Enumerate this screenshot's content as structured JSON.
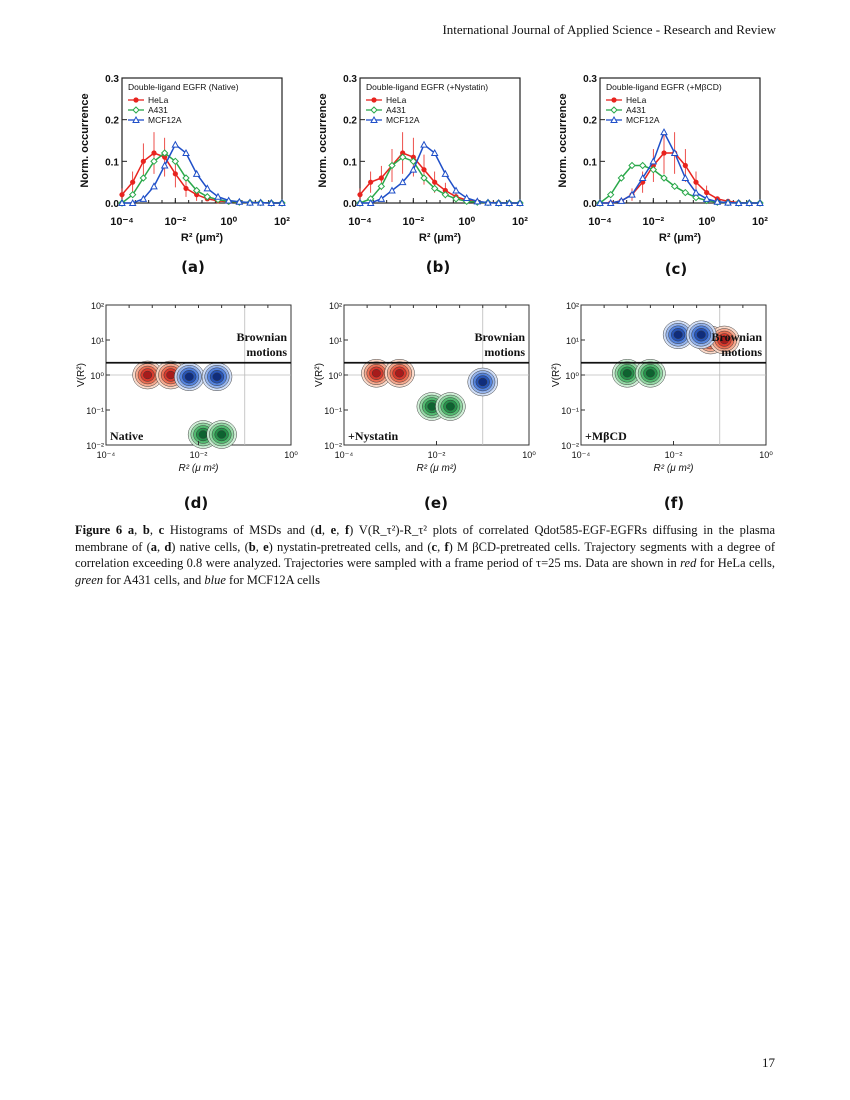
{
  "header": "International Journal of Applied Science - Research and Review",
  "page_number": "17",
  "colors": {
    "hela": "#e8231e",
    "a431": "#2aa84a",
    "mcf12a": "#1f4fc8"
  },
  "panel_labels": [
    "(a)",
    "(b)",
    "(c)",
    "(d)",
    "(e)",
    "(f)"
  ],
  "chart_data": [
    {
      "type": "line",
      "panel": "a",
      "title": "Double-ligand EGFR (Native)",
      "xlabel": "R² (μm²)",
      "ylabel": "Norm. occurrence",
      "x_scale": "log",
      "x_ticks": [
        "10⁻⁴",
        "10⁻²",
        "10⁰",
        "10²"
      ],
      "y_ticks": [
        "0.0",
        "0.1",
        "0.2",
        "0.3"
      ],
      "ylim": [
        0,
        0.3
      ],
      "x_exponents": [
        -4,
        -3.6,
        -3.2,
        -2.8,
        -2.4,
        -2,
        -1.6,
        -1.2,
        -0.8,
        -0.4,
        0,
        0.4,
        0.8,
        1.2,
        1.6,
        2
      ],
      "series": [
        {
          "name": "HeLa",
          "color": "#e8231e",
          "values": [
            0.02,
            0.05,
            0.1,
            0.12,
            0.11,
            0.07,
            0.035,
            0.02,
            0.01,
            0.005,
            0.003,
            0.002,
            0.001,
            0.001,
            0,
            0
          ]
        },
        {
          "name": "A431",
          "color": "#2aa84a",
          "values": [
            0.0,
            0.02,
            0.06,
            0.1,
            0.12,
            0.1,
            0.06,
            0.03,
            0.015,
            0.008,
            0.004,
            0.002,
            0.001,
            0.001,
            0,
            0
          ]
        },
        {
          "name": "MCF12A",
          "color": "#1f4fc8",
          "values": [
            0.0,
            0.0,
            0.01,
            0.04,
            0.09,
            0.14,
            0.12,
            0.07,
            0.035,
            0.015,
            0.006,
            0.003,
            0.001,
            0.001,
            0,
            0
          ]
        }
      ]
    },
    {
      "type": "line",
      "panel": "b",
      "title": "Double-ligand EGFR (+Nystatin)",
      "xlabel": "R² (μm²)",
      "ylabel": "Norm. occurrence",
      "x_scale": "log",
      "x_ticks": [
        "10⁻⁴",
        "10⁻²",
        "10⁰",
        "10²"
      ],
      "y_ticks": [
        "0.0",
        "0.1",
        "0.2",
        "0.3"
      ],
      "ylim": [
        0,
        0.3
      ],
      "x_exponents": [
        -4,
        -3.6,
        -3.2,
        -2.8,
        -2.4,
        -2,
        -1.6,
        -1.2,
        -0.8,
        -0.4,
        0,
        0.4,
        0.8,
        1.2,
        1.6,
        2
      ],
      "series": [
        {
          "name": "HeLa",
          "color": "#e8231e",
          "values": [
            0.02,
            0.05,
            0.06,
            0.09,
            0.12,
            0.11,
            0.08,
            0.05,
            0.03,
            0.015,
            0.007,
            0.003,
            0.001,
            0.001,
            0,
            0
          ]
        },
        {
          "name": "A431",
          "color": "#2aa84a",
          "values": [
            0.0,
            0.01,
            0.04,
            0.09,
            0.11,
            0.1,
            0.06,
            0.035,
            0.02,
            0.01,
            0.004,
            0.002,
            0.001,
            0,
            0,
            0
          ]
        },
        {
          "name": "MCF12A",
          "color": "#1f4fc8",
          "values": [
            0.0,
            0.0,
            0.01,
            0.03,
            0.05,
            0.08,
            0.14,
            0.12,
            0.07,
            0.03,
            0.012,
            0.004,
            0.001,
            0,
            0,
            0
          ]
        }
      ]
    },
    {
      "type": "line",
      "panel": "c",
      "title": "Double-ligand EGFR (+MβCD)",
      "xlabel": "R² (μm²)",
      "ylabel": "Norm. occurrence",
      "x_scale": "log",
      "x_ticks": [
        "10⁻⁴",
        "10⁻²",
        "10⁰",
        "10²"
      ],
      "y_ticks": [
        "0.0",
        "0.1",
        "0.2",
        "0.3"
      ],
      "ylim": [
        0,
        0.3
      ],
      "x_exponents": [
        -4,
        -3.6,
        -3.2,
        -2.8,
        -2.4,
        -2,
        -1.6,
        -1.2,
        -0.8,
        -0.4,
        0,
        0.4,
        0.8,
        1.2,
        1.6,
        2
      ],
      "series": [
        {
          "name": "HeLa",
          "color": "#e8231e",
          "values": [
            0.0,
            0.0,
            0.005,
            0.02,
            0.05,
            0.09,
            0.12,
            0.12,
            0.09,
            0.05,
            0.025,
            0.01,
            0.004,
            0.001,
            0,
            0
          ]
        },
        {
          "name": "A431",
          "color": "#2aa84a",
          "values": [
            0.0,
            0.02,
            0.06,
            0.09,
            0.09,
            0.08,
            0.06,
            0.04,
            0.025,
            0.013,
            0.006,
            0.002,
            0.001,
            0,
            0,
            0
          ]
        },
        {
          "name": "MCF12A",
          "color": "#1f4fc8",
          "values": [
            0.0,
            0.0,
            0.005,
            0.02,
            0.06,
            0.1,
            0.17,
            0.12,
            0.06,
            0.025,
            0.01,
            0.003,
            0.001,
            0,
            0,
            0
          ]
        }
      ]
    },
    {
      "type": "heatmap",
      "panel": "d",
      "annotation": "Native",
      "region_label": [
        "Brownian",
        "motions"
      ],
      "xlabel": "R² (μ m²)",
      "ylabel": "V(R²)",
      "x_scale": "log",
      "y_scale": "log",
      "xlim_exp": [
        -4,
        0
      ],
      "ylim_exp": [
        -2,
        2
      ],
      "x_ticks": [
        "10⁻⁴",
        "10⁻²",
        "10⁰"
      ],
      "y_ticks": [
        "10⁻²",
        "10⁻¹",
        "10⁰",
        "10¹",
        "10²"
      ],
      "brownian_line_exp": 0.35,
      "blobs": [
        {
          "series": "HeLa",
          "color": "#e8231e",
          "x_exp": [
            -3.1,
            -2.6
          ],
          "y_exp": 0.0
        },
        {
          "series": "MCF12A",
          "color": "#1f4fc8",
          "x_exp": [
            -2.2,
            -1.6
          ],
          "y_exp": -0.05
        },
        {
          "series": "A431",
          "color": "#2aa84a",
          "x_exp": [
            -1.9,
            -1.5
          ],
          "y_exp": -1.7
        }
      ]
    },
    {
      "type": "heatmap",
      "panel": "e",
      "annotation": "+Nystatin",
      "region_label": [
        "Brownian",
        "motions"
      ],
      "xlabel": "R² (μ m²)",
      "ylabel": "V(R²)",
      "x_scale": "log",
      "y_scale": "log",
      "xlim_exp": [
        -4,
        0
      ],
      "ylim_exp": [
        -2,
        2
      ],
      "x_ticks": [
        "10⁻⁴",
        "10⁻²",
        "10⁰"
      ],
      "y_ticks": [
        "10⁻²",
        "10⁻¹",
        "10⁰",
        "10¹",
        "10²"
      ],
      "brownian_line_exp": 0.35,
      "blobs": [
        {
          "series": "HeLa",
          "color": "#e8231e",
          "x_exp": [
            -3.3,
            -2.8
          ],
          "y_exp": 0.05
        },
        {
          "series": "A431",
          "color": "#2aa84a",
          "x_exp": [
            -2.1,
            -1.7
          ],
          "y_exp": -0.9
        },
        {
          "series": "MCF12A",
          "color": "#1f4fc8",
          "x_exp": [
            -1.0
          ],
          "y_exp": -0.2
        }
      ]
    },
    {
      "type": "heatmap",
      "panel": "f",
      "annotation": "+MβCD",
      "region_label": [
        "Brownian",
        "motions"
      ],
      "xlabel": "R² (μ m²)",
      "ylabel": "V(R²)",
      "x_scale": "log",
      "y_scale": "log",
      "xlim_exp": [
        -4,
        0
      ],
      "ylim_exp": [
        -2,
        2
      ],
      "x_ticks": [
        "10⁻⁴",
        "10⁻²",
        "10⁰"
      ],
      "y_ticks": [
        "10⁻²",
        "10⁻¹",
        "10⁰",
        "10¹",
        "10²"
      ],
      "brownian_line_exp": 0.35,
      "blobs": [
        {
          "series": "A431",
          "color": "#2aa84a",
          "x_exp": [
            -3.0,
            -2.5
          ],
          "y_exp": 0.05
        },
        {
          "series": "HeLa",
          "color": "#e8231e",
          "x_exp": [
            -1.2,
            -0.9
          ],
          "y_exp": 1.0
        },
        {
          "series": "MCF12A",
          "color": "#1f4fc8",
          "x_exp": [
            -1.9,
            -1.4
          ],
          "y_exp": 1.15
        }
      ]
    }
  ],
  "caption": {
    "label": "Figure 6",
    "parts": [
      "a",
      ", ",
      "b",
      ", ",
      "c",
      " Histograms of MSDs and (",
      "d",
      ", ",
      "e",
      ", ",
      "f",
      ") V(R_τ²)-R_τ² plots of correlated Qdot585-EGF-EGFRs diffusing in the plasma membrane of (",
      "a",
      ", ",
      "d",
      ") native cells, (",
      "b",
      ", ",
      "e",
      ") nystatin-pretreated cells, and (",
      "c",
      ", ",
      "f",
      ") M βCD-pretreated cells. Trajectory segments with a degree of correlation exceeding 0.8 were analyzed. Trajectories were sampled with a frame period of τ=25 ms. Data are shown in ",
      "red",
      " for HeLa cells, ",
      "green",
      " for A431 cells, and ",
      "blue",
      " for MCF12A cells"
    ]
  }
}
